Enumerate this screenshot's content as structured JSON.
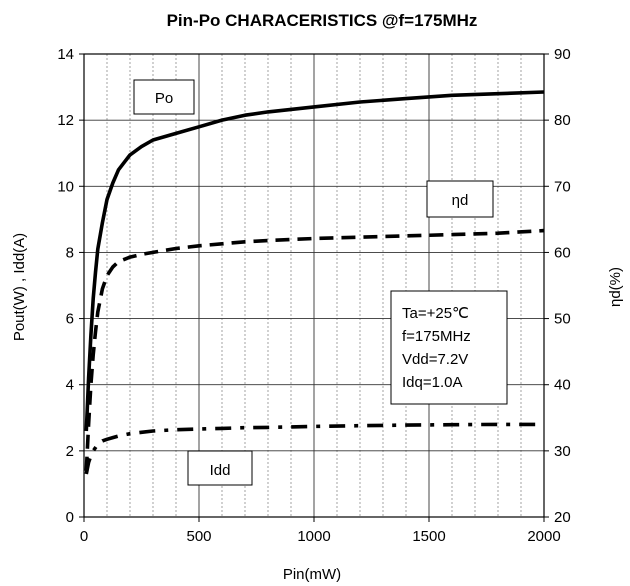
{
  "chart_data": {
    "type": "line",
    "title": "Pin-Po CHARACERISTICS @f=175MHz",
    "xlabel": "Pin(mW)",
    "ylabel": "Pout(W) , Idd(A)",
    "y2label": "ηd(%)",
    "xlim": [
      0,
      2000
    ],
    "ylim": [
      0,
      14
    ],
    "y2lim": [
      20,
      90
    ],
    "x_ticks": [
      0,
      500,
      1000,
      1500,
      2000
    ],
    "y_ticks": [
      0,
      2,
      4,
      6,
      8,
      10,
      12,
      14
    ],
    "y2_ticks": [
      20,
      30,
      40,
      50,
      60,
      70,
      80,
      90
    ],
    "grid": true,
    "series": [
      {
        "name": "Po",
        "axis": "left",
        "style": "solid",
        "x": [
          10,
          20,
          30,
          40,
          50,
          60,
          80,
          100,
          125,
          150,
          200,
          250,
          300,
          400,
          500,
          600,
          700,
          800,
          1000,
          1200,
          1400,
          1600,
          1800,
          2000
        ],
        "y": [
          2.6,
          4.2,
          5.5,
          6.6,
          7.4,
          8.1,
          8.9,
          9.6,
          10.1,
          10.5,
          10.95,
          11.2,
          11.4,
          11.6,
          11.8,
          12.0,
          12.15,
          12.25,
          12.4,
          12.55,
          12.65,
          12.75,
          12.8,
          12.85
        ]
      },
      {
        "name": "ηd",
        "axis": "right",
        "style": "dashed",
        "x": [
          10,
          20,
          30,
          40,
          50,
          60,
          80,
          100,
          125,
          150,
          200,
          250,
          300,
          400,
          500,
          600,
          700,
          800,
          1000,
          1200,
          1400,
          1600,
          1800,
          2000
        ],
        "y": [
          27,
          34,
          40,
          44.5,
          48,
          51,
          54.5,
          56.5,
          57.8,
          58.6,
          59.3,
          59.7,
          60.0,
          60.6,
          61.0,
          61.3,
          61.6,
          61.8,
          62.1,
          62.3,
          62.5,
          62.7,
          62.9,
          63.3
        ]
      },
      {
        "name": "Idd",
        "axis": "left",
        "style": "dash-dot",
        "x": [
          10,
          20,
          30,
          40,
          50,
          60,
          80,
          100,
          125,
          150,
          200,
          250,
          300,
          400,
          500,
          600,
          700,
          800,
          1000,
          1200,
          1400,
          1600,
          1800,
          2000
        ],
        "y": [
          1.3,
          1.65,
          1.85,
          2.0,
          2.1,
          2.2,
          2.3,
          2.35,
          2.4,
          2.45,
          2.52,
          2.56,
          2.6,
          2.64,
          2.66,
          2.68,
          2.7,
          2.71,
          2.74,
          2.76,
          2.78,
          2.79,
          2.8,
          2.8
        ]
      }
    ],
    "series_labels": [
      "Po",
      "ηd",
      "Idd"
    ],
    "annotation": [
      "Ta=+25℃",
      "f=175MHz",
      "Vdd=7.2V",
      "Idq=1.0A"
    ]
  }
}
